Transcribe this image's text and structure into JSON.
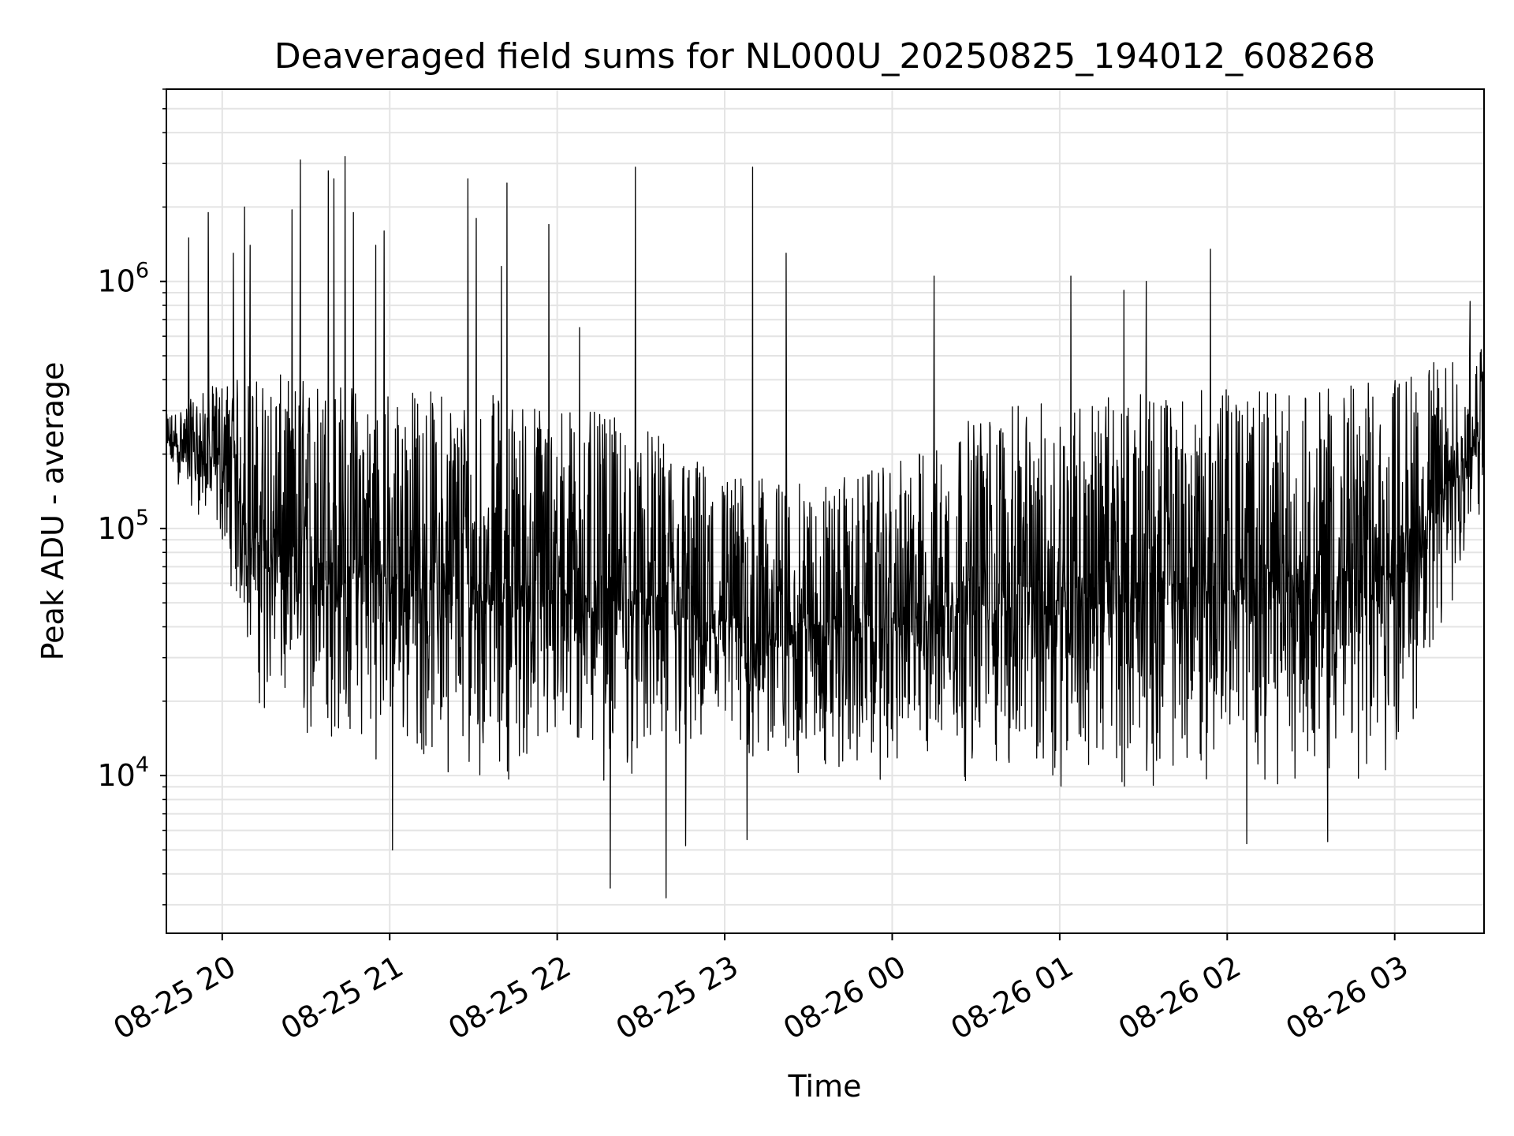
{
  "chart_data": {
    "type": "line",
    "title": "Deaveraged field sums for NL000U_20250825_194012_608268",
    "xlabel": "Time",
    "ylabel": "Peak ADU - average",
    "yscale": "log",
    "ylim": [
      2300,
      6000000
    ],
    "xlim": [
      "2025-08-25 19:40",
      "2025-08-26 03:32"
    ],
    "grid": true,
    "line_color": "#000000",
    "x_ticks": [
      {
        "time": "2025-08-25 20:00",
        "label": "08-25 20"
      },
      {
        "time": "2025-08-25 21:00",
        "label": "08-25 21"
      },
      {
        "time": "2025-08-25 22:00",
        "label": "08-25 22"
      },
      {
        "time": "2025-08-25 23:00",
        "label": "08-25 23"
      },
      {
        "time": "2025-08-26 00:00",
        "label": "08-26 00"
      },
      {
        "time": "2025-08-26 01:00",
        "label": "08-26 01"
      },
      {
        "time": "2025-08-26 02:00",
        "label": "08-26 02"
      },
      {
        "time": "2025-08-26 03:00",
        "label": "08-26 03"
      }
    ],
    "y_ticks": [
      {
        "value": 10000,
        "base": "10",
        "exp": "4"
      },
      {
        "value": 100000,
        "base": "10",
        "exp": "5"
      },
      {
        "value": 1000000,
        "base": "10",
        "exp": "6"
      }
    ],
    "series": [
      {
        "x": [
          "2025-08-25 19:40",
          "2025-08-25 20:00",
          "2025-08-25 20:15",
          "2025-08-25 20:30",
          "2025-08-25 21:00",
          "2025-08-25 21:30",
          "2025-08-25 22:00",
          "2025-08-25 22:30",
          "2025-08-25 23:00",
          "2025-08-25 23:30",
          "2025-08-26 00:00",
          "2025-08-26 00:30",
          "2025-08-26 01:00",
          "2025-08-26 01:30",
          "2025-08-26 02:00",
          "2025-08-26 02:30",
          "2025-08-26 03:00",
          "2025-08-26 03:32"
        ],
        "max_envelope": [
          290000,
          400000,
          420000,
          420000,
          380000,
          360000,
          330000,
          260000,
          170000,
          150000,
          180000,
          290000,
          340000,
          350000,
          370000,
          360000,
          420000,
          550000
        ],
        "min_envelope": [
          170000,
          80000,
          15000,
          12000,
          11000,
          9500,
          9000,
          9000,
          9000,
          9000,
          9000,
          9000,
          8500,
          8500,
          9000,
          9000,
          9000,
          110000
        ],
        "spikes": [
          {
            "time": "2025-08-25 19:48",
            "value": 1500000
          },
          {
            "time": "2025-08-25 19:55",
            "value": 1900000
          },
          {
            "time": "2025-08-25 20:04",
            "value": 1300000
          },
          {
            "time": "2025-08-25 20:08",
            "value": 2000000
          },
          {
            "time": "2025-08-25 20:10",
            "value": 1400000
          },
          {
            "time": "2025-08-25 20:25",
            "value": 1950000
          },
          {
            "time": "2025-08-25 20:28",
            "value": 3100000
          },
          {
            "time": "2025-08-25 20:38",
            "value": 2800000
          },
          {
            "time": "2025-08-25 20:40",
            "value": 2600000
          },
          {
            "time": "2025-08-25 20:44",
            "value": 3200000
          },
          {
            "time": "2025-08-25 20:47",
            "value": 1900000
          },
          {
            "time": "2025-08-25 20:55",
            "value": 1400000
          },
          {
            "time": "2025-08-25 20:58",
            "value": 1600000
          },
          {
            "time": "2025-08-25 21:28",
            "value": 2600000
          },
          {
            "time": "2025-08-25 21:31",
            "value": 1800000
          },
          {
            "time": "2025-08-25 21:40",
            "value": 1150000
          },
          {
            "time": "2025-08-25 21:42",
            "value": 2500000
          },
          {
            "time": "2025-08-25 21:57",
            "value": 1700000
          },
          {
            "time": "2025-08-25 22:08",
            "value": 650000
          },
          {
            "time": "2025-08-25 22:28",
            "value": 2900000
          },
          {
            "time": "2025-08-25 23:10",
            "value": 2900000
          },
          {
            "time": "2025-08-25 23:22",
            "value": 1300000
          },
          {
            "time": "2025-08-26 00:15",
            "value": 1050000
          },
          {
            "time": "2025-08-26 01:04",
            "value": 1050000
          },
          {
            "time": "2025-08-26 01:23",
            "value": 920000
          },
          {
            "time": "2025-08-26 01:31",
            "value": 1000000
          },
          {
            "time": "2025-08-26 01:54",
            "value": 1350000
          },
          {
            "time": "2025-08-26 03:27",
            "value": 830000
          }
        ],
        "dips": [
          {
            "time": "2025-08-25 21:01",
            "value": 5000
          },
          {
            "time": "2025-08-25 22:19",
            "value": 3500
          },
          {
            "time": "2025-08-25 22:39",
            "value": 3200
          },
          {
            "time": "2025-08-25 22:46",
            "value": 5200
          },
          {
            "time": "2025-08-25 23:08",
            "value": 5500
          },
          {
            "time": "2025-08-26 02:07",
            "value": 5300
          },
          {
            "time": "2025-08-26 02:36",
            "value": 5400
          }
        ]
      }
    ]
  }
}
